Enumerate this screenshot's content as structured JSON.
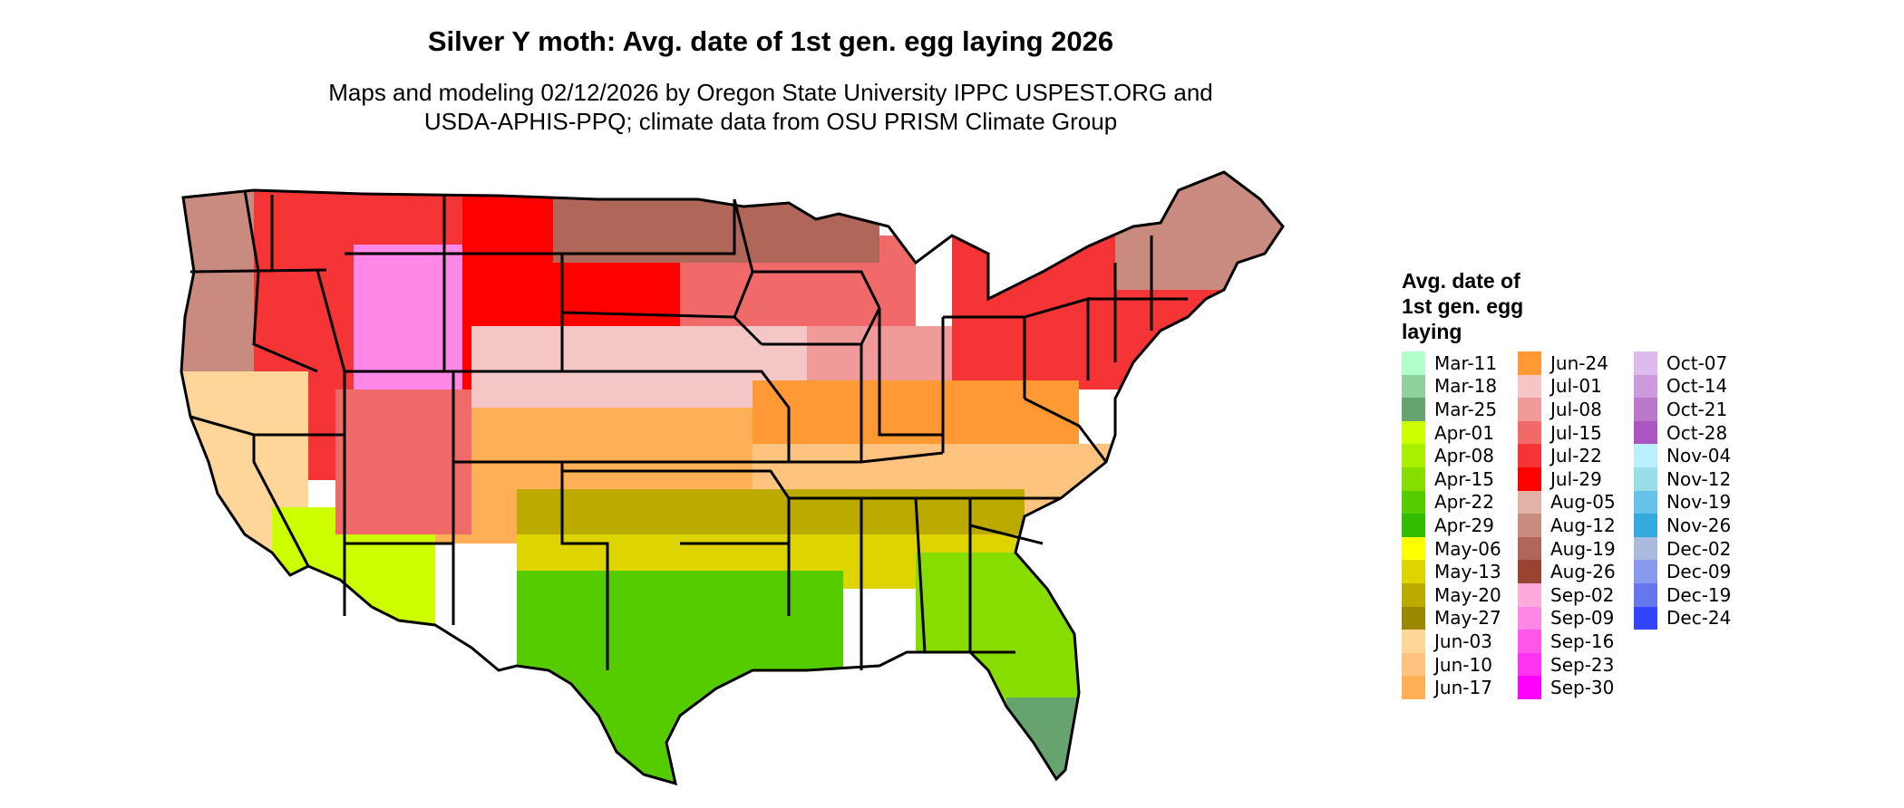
{
  "title": "Silver Y moth: Avg. date of 1st gen. egg laying 2026",
  "subtitle_lines": [
    "Maps and modeling 02/12/2026 by Oregon State University IPPC USPEST.ORG and",
    "USDA-APHIS-PPQ; climate data from OSU PRISM Climate Group"
  ],
  "legend": {
    "title": "Avg. date of 1st gen. egg laying",
    "title_lines": [
      "Avg. date of",
      "1st gen. egg",
      "laying"
    ],
    "columns": [
      [
        {
          "label": "Mar-11",
          "color": "#b3ffcc"
        },
        {
          "label": "Mar-18",
          "color": "#8fd19e"
        },
        {
          "label": "Mar-25",
          "color": "#66a36e"
        },
        {
          "label": "Apr-01",
          "color": "#ccff00"
        },
        {
          "label": "Apr-08",
          "color": "#aaee00"
        },
        {
          "label": "Apr-15",
          "color": "#88dd00"
        },
        {
          "label": "Apr-22",
          "color": "#55cc00"
        },
        {
          "label": "Apr-29",
          "color": "#33bb00"
        },
        {
          "label": "May-06",
          "color": "#ffff00"
        },
        {
          "label": "May-13",
          "color": "#ddd400"
        },
        {
          "label": "May-20",
          "color": "#bbaa00"
        },
        {
          "label": "May-27",
          "color": "#998800"
        },
        {
          "label": "Jun-03",
          "color": "#ffd699"
        },
        {
          "label": "Jun-10",
          "color": "#ffc380"
        },
        {
          "label": "Jun-17",
          "color": "#ffaf55"
        }
      ],
      [
        {
          "label": "Jun-24",
          "color": "#ff9933"
        },
        {
          "label": "Jul-01",
          "color": "#f5c6c6"
        },
        {
          "label": "Jul-08",
          "color": "#f09a9a"
        },
        {
          "label": "Jul-15",
          "color": "#f06a6a"
        },
        {
          "label": "Jul-22",
          "color": "#f53535"
        },
        {
          "label": "Jul-29",
          "color": "#ff0000"
        },
        {
          "label": "Aug-05",
          "color": "#e0b2a8"
        },
        {
          "label": "Aug-12",
          "color": "#c98a80"
        },
        {
          "label": "Aug-19",
          "color": "#b06658"
        },
        {
          "label": "Aug-26",
          "color": "#994433"
        },
        {
          "label": "Sep-02",
          "color": "#ffaadd"
        },
        {
          "label": "Sep-09",
          "color": "#ff88e6"
        },
        {
          "label": "Sep-16",
          "color": "#ff55e8"
        },
        {
          "label": "Sep-23",
          "color": "#ff33f0"
        },
        {
          "label": "Sep-30",
          "color": "#ff00ff"
        }
      ],
      [
        {
          "label": "Oct-07",
          "color": "#ddbbee"
        },
        {
          "label": "Oct-14",
          "color": "#cc99dd"
        },
        {
          "label": "Oct-21",
          "color": "#bb77cc"
        },
        {
          "label": "Oct-28",
          "color": "#aa55c2"
        },
        {
          "label": "Nov-04",
          "color": "#bbeeff"
        },
        {
          "label": "Nov-12",
          "color": "#99dde8"
        },
        {
          "label": "Nov-19",
          "color": "#66c2e8"
        },
        {
          "label": "Nov-26",
          "color": "#33aadd"
        },
        {
          "label": "Dec-02",
          "color": "#aabbdd"
        },
        {
          "label": "Dec-09",
          "color": "#8899ee"
        },
        {
          "label": "Dec-19",
          "color": "#6677ee"
        },
        {
          "label": "Dec-24",
          "color": "#3344ff"
        }
      ]
    ]
  },
  "map_regions": [
    {
      "name": "pacific-northwest",
      "color": "#c98a80"
    },
    {
      "name": "northern-rockies",
      "color": "#f53535"
    },
    {
      "name": "rocky-mountains-high",
      "color": "#ff88e6"
    },
    {
      "name": "northern-plains",
      "color": "#ff0000"
    },
    {
      "name": "upper-midwest",
      "color": "#f06a6a"
    },
    {
      "name": "north-woods",
      "color": "#b06658"
    },
    {
      "name": "central-plains",
      "color": "#f5c6c6"
    },
    {
      "name": "ohio-valley",
      "color": "#f09a9a"
    },
    {
      "name": "northeast",
      "color": "#f53535"
    },
    {
      "name": "new-england-north",
      "color": "#c98a80"
    },
    {
      "name": "southern-plains",
      "color": "#ffaf55"
    },
    {
      "name": "mid-south",
      "color": "#ff9933"
    },
    {
      "name": "southeast",
      "color": "#ffc380"
    },
    {
      "name": "deep-south",
      "color": "#bbaa00"
    },
    {
      "name": "gulf-coast",
      "color": "#ddd400"
    },
    {
      "name": "texas-south",
      "color": "#55cc00"
    },
    {
      "name": "florida",
      "color": "#88dd00"
    },
    {
      "name": "south-florida",
      "color": "#66a36e"
    },
    {
      "name": "california-coast",
      "color": "#ffd699"
    },
    {
      "name": "desert-southwest",
      "color": "#ccff00"
    },
    {
      "name": "southwest-high",
      "color": "#f06a6a"
    }
  ]
}
